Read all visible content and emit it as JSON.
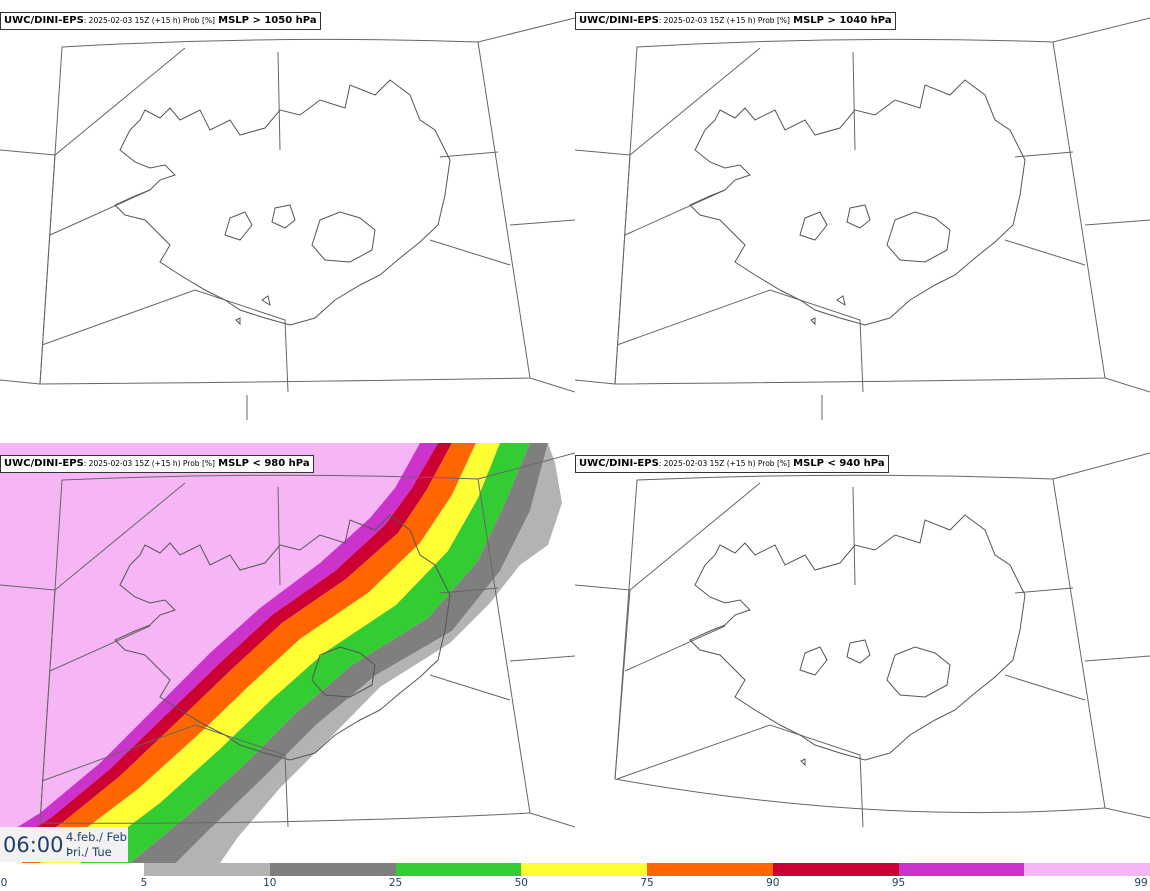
{
  "panels": [
    {
      "model": "UWC/DINI-EPS",
      "meta": ": 2025-02-03 15Z (+15 h) Prob [%]",
      "threshold": "MSLP > 1050 hPa"
    },
    {
      "model": "UWC/DINI-EPS",
      "meta": ": 2025-02-03 15Z (+15 h) Prob [%]",
      "threshold": "MSLP > 1040 hPa"
    },
    {
      "model": "UWC/DINI-EPS",
      "meta": ": 2025-02-03 15Z (+15 h) Prob [%]",
      "threshold": "MSLP < 980 hPa"
    },
    {
      "model": "UWC/DINI-EPS",
      "meta": ": 2025-02-03 15Z (+15 h) Prob [%]",
      "threshold": "MSLP < 940 hPa"
    }
  ],
  "time": {
    "clock": "06:00",
    "date_line": "4.feb./ Feb",
    "day_line": "Þri./ Tue"
  },
  "colorbar": {
    "ticks": [
      "0",
      "5",
      "10",
      "25",
      "50",
      "75",
      "90",
      "95",
      "99"
    ],
    "colors": [
      "#b3b3b3",
      "#7f7f7f",
      "#33cc33",
      "#ffff33",
      "#ff6600",
      "#cc0033",
      "#cc33cc",
      "#f6b6f6"
    ]
  }
}
